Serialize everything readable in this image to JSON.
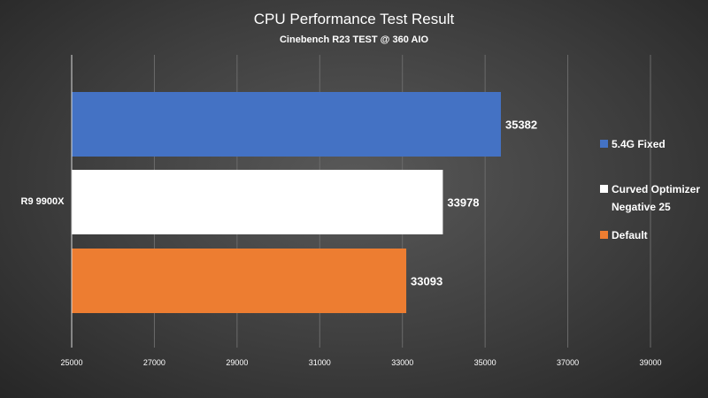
{
  "chart_data": {
    "type": "bar",
    "orientation": "horizontal",
    "title": "CPU Performance Test Result",
    "subtitle": "Cinebench R23 TEST @ 360 AIO",
    "categories": [
      "R9 9900X"
    ],
    "series": [
      {
        "name": "5.4G Fixed",
        "values": [
          35382
        ],
        "color": "#4472C4"
      },
      {
        "name": "Curved Optimizer Negative 25",
        "legend_lines": [
          "Curved Optimizer",
          "Negative 25"
        ],
        "values": [
          33978
        ],
        "color": "#FFFFFF"
      },
      {
        "name": "Default",
        "values": [
          33093
        ],
        "color": "#ED7D31"
      }
    ],
    "xlim": [
      25000,
      39000
    ],
    "xticks": [
      "25000",
      "27000",
      "29000",
      "31000",
      "33000",
      "35000",
      "37000",
      "39000"
    ],
    "grid": true,
    "legend_position": "right",
    "data_labels": true
  }
}
